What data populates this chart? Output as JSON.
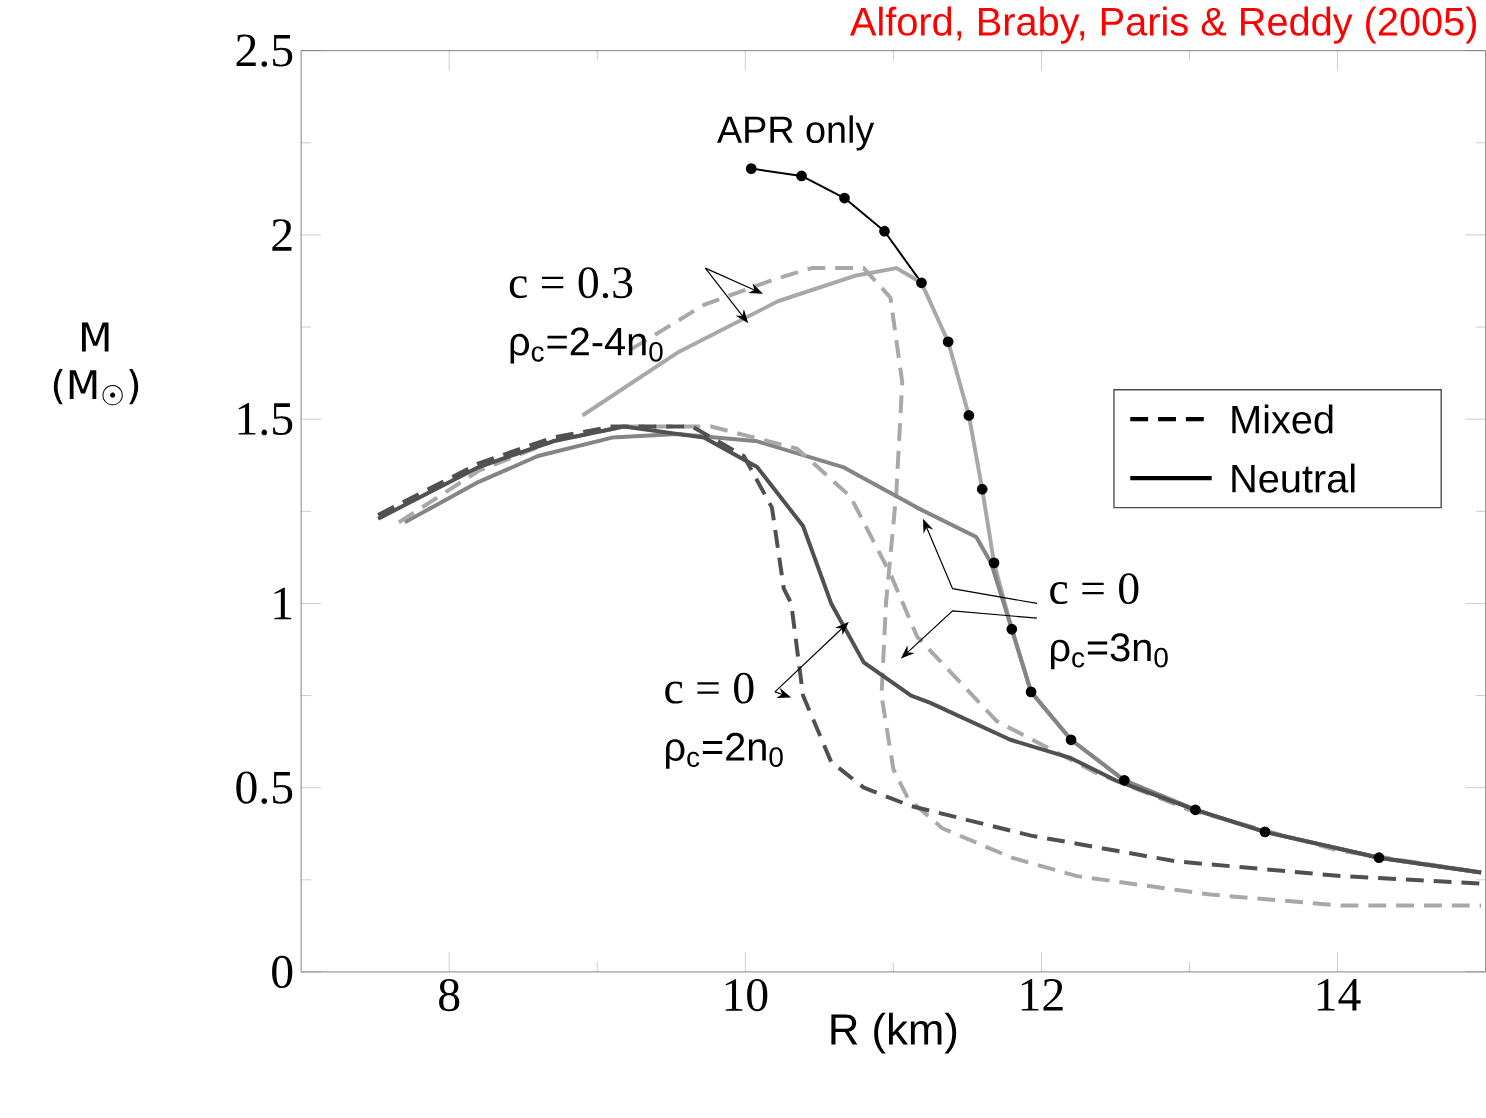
{
  "chart_data": {
    "type": "line",
    "xlabel": "R (km)",
    "ylabel": "M (M$_{☉}$)",
    "xlim": [
      7,
      15
    ],
    "ylim": [
      0,
      2.5
    ],
    "xticks": [
      8,
      10,
      12,
      14
    ],
    "yticks": [
      0,
      0.5,
      1,
      1.5,
      2,
      2.5
    ],
    "annotations": [
      "Alford, Braby, Paris & Reddy (2005)",
      "c = 0.3",
      "ρ$_{c}$=2-4n$_{0}$",
      {
        "text": "c = 0",
        "x": 11.2,
        "y": 1.23
      },
      "ρ$_{c}$=3n$_{0}$",
      {
        "text": "c = 0",
        "x": 10.7,
        "y": 0.95
      },
      "ρ$_{c}$=2n$_{0}$",
      "Mixed",
      "Neutral",
      {
        "text": "APR only",
        "x": 10.04,
        "y": 2.18
      }
    ],
    "series": [
      {
        "color": "#000000",
        "line_style": "solid",
        "marker": "circle",
        "x": [
          10.04,
          10.38,
          10.67,
          10.94,
          11.19,
          11.37,
          11.51,
          11.6,
          11.68,
          11.8,
          11.93,
          12.2,
          12.56,
          13.04,
          13.51,
          14.28
        ],
        "values": [
          2.18,
          2.16,
          2.1,
          2.01,
          1.87,
          1.71,
          1.51,
          1.31,
          1.11,
          0.93,
          0.76,
          0.63,
          0.52,
          0.44,
          0.38,
          0.31
        ]
      },
      {
        "color": "#a8a8a8",
        "line_style": "solid",
        "x": [
          8.9,
          9.54,
          10.22,
          10.75,
          11.02,
          11.19,
          11.37,
          11.51,
          11.6,
          11.68,
          11.8,
          11.93,
          12.2,
          12.56,
          13.04,
          13.51,
          14.28,
          14.97
        ],
        "values": [
          1.51,
          1.68,
          1.82,
          1.89,
          1.91,
          1.87,
          1.71,
          1.51,
          1.31,
          1.11,
          0.93,
          0.76,
          0.63,
          0.52,
          0.44,
          0.38,
          0.31,
          0.27
        ]
      },
      {
        "color": "#a8a8a8",
        "line_style": "dashed",
        "x": [
          9.23,
          9.72,
          10.2,
          10.45,
          10.8,
          10.98,
          11.06,
          11.02,
          10.95,
          10.92,
          11.0,
          11.1,
          11.33,
          11.8,
          12.24,
          13.14,
          14.03,
          14.97
        ],
        "values": [
          1.69,
          1.81,
          1.88,
          1.91,
          1.91,
          1.83,
          1.6,
          1.3,
          1.0,
          0.75,
          0.55,
          0.47,
          0.39,
          0.31,
          0.26,
          0.21,
          0.18,
          0.18
        ]
      },
      {
        "color": "#858585",
        "line_style": "solid",
        "x": [
          7.7,
          8.2,
          8.6,
          9.1,
          9.54,
          10.08,
          10.66,
          11.16,
          11.56,
          11.66,
          11.8,
          11.93,
          12.2,
          12.56,
          13.04,
          13.51,
          14.28,
          14.97
        ],
        "values": [
          1.22,
          1.33,
          1.4,
          1.45,
          1.46,
          1.44,
          1.37,
          1.26,
          1.18,
          1.11,
          0.93,
          0.76,
          0.63,
          0.52,
          0.44,
          0.38,
          0.31,
          0.27
        ]
      },
      {
        "color": "#a8a8a8",
        "line_style": "dashed",
        "x": [
          7.66,
          8.2,
          8.7,
          9.18,
          9.77,
          10.35,
          10.71,
          10.98,
          11.16,
          11.7,
          12.37,
          13.0,
          14.0,
          14.97
        ],
        "values": [
          1.22,
          1.36,
          1.44,
          1.48,
          1.48,
          1.42,
          1.29,
          1.08,
          0.91,
          0.68,
          0.54,
          0.44,
          0.33,
          0.27
        ]
      },
      {
        "color": "#505050",
        "line_style": "solid",
        "x": [
          7.52,
          8.2,
          8.7,
          9.18,
          9.72,
          10.08,
          10.39,
          10.58,
          10.8,
          11.12,
          11.25,
          11.79,
          12.2,
          12.5,
          13.04,
          13.51,
          14.28,
          14.97
        ],
        "values": [
          1.23,
          1.37,
          1.44,
          1.48,
          1.45,
          1.37,
          1.21,
          1.0,
          0.84,
          0.75,
          0.73,
          0.63,
          0.58,
          0.52,
          0.44,
          0.38,
          0.31,
          0.27
        ]
      },
      {
        "color": "#505050",
        "line_style": "dashed",
        "x": [
          7.52,
          8.2,
          8.7,
          9.1,
          9.64,
          9.99,
          10.18,
          10.26,
          10.31,
          10.39,
          10.58,
          10.8,
          11.12,
          11.93,
          12.91,
          14.03,
          14.97
        ],
        "values": [
          1.24,
          1.38,
          1.45,
          1.48,
          1.48,
          1.4,
          1.26,
          1.04,
          1.0,
          0.75,
          0.57,
          0.5,
          0.45,
          0.37,
          0.3,
          0.26,
          0.24
        ]
      }
    ]
  }
}
